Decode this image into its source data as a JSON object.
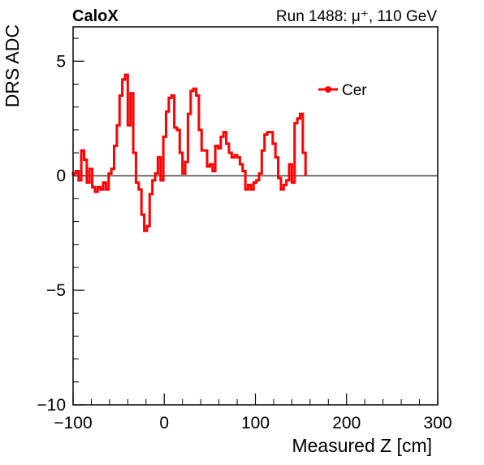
{
  "header": {
    "left_label": "CaloX",
    "right_label": "Run 1488:   μ⁺, 110 GeV"
  },
  "legend": {
    "label": "Cer",
    "placement": "top-right"
  },
  "colors": {
    "series": "#ff0000",
    "axis": "#000000",
    "background": "#ffffff"
  },
  "chart_data": {
    "type": "line",
    "style": "histogram-step",
    "xlabel": "Measured Z [cm]",
    "ylabel": "DRS ADC",
    "xlim": [
      -100,
      300
    ],
    "ylim": [
      -10,
      6.5
    ],
    "grid": false,
    "x_ticks": [
      -100,
      0,
      100,
      200,
      300
    ],
    "x_tick_labels": [
      "−100",
      "0",
      "100",
      "200",
      "300"
    ],
    "y_ticks": [
      -10,
      -5,
      0,
      5
    ],
    "y_tick_labels": [
      "−10",
      "−5",
      "0",
      "5"
    ],
    "bin_edges_start": -100,
    "bin_width": 3,
    "series": [
      {
        "name": "Cer",
        "values": [
          0.1,
          0.2,
          -0.2,
          1.1,
          0.7,
          -0.3,
          0.3,
          -0.5,
          -0.7,
          -0.5,
          -0.6,
          -0.3,
          -0.6,
          0.1,
          0.3,
          1.3,
          2.2,
          3.5,
          4.2,
          4.4,
          2.2,
          3.6,
          1.0,
          -0.3,
          -0.6,
          -1.7,
          -2.4,
          -2.2,
          -0.8,
          -0.2,
          0.1,
          0.8,
          -0.2,
          1.7,
          2.8,
          3.4,
          3.5,
          2.1,
          2.0,
          1.0,
          0.1,
          0.6,
          2.7,
          3.7,
          3.8,
          3.5,
          2.0,
          1.1,
          1.1,
          0.4,
          0.5,
          0.2,
          1.3,
          1.2,
          1.7,
          1.9,
          1.4,
          1.0,
          0.8,
          0.9,
          0.8,
          0.5,
          0.2,
          -0.6,
          -0.4,
          -0.6,
          -0.3,
          -0.2,
          0.1,
          1.1,
          1.8,
          1.9,
          1.9,
          1.4,
          0.8,
          -0.1,
          -0.6,
          -0.4,
          -0.2,
          0.5,
          -0.3,
          2.3,
          2.5,
          2.7,
          1.0
        ]
      }
    ]
  }
}
